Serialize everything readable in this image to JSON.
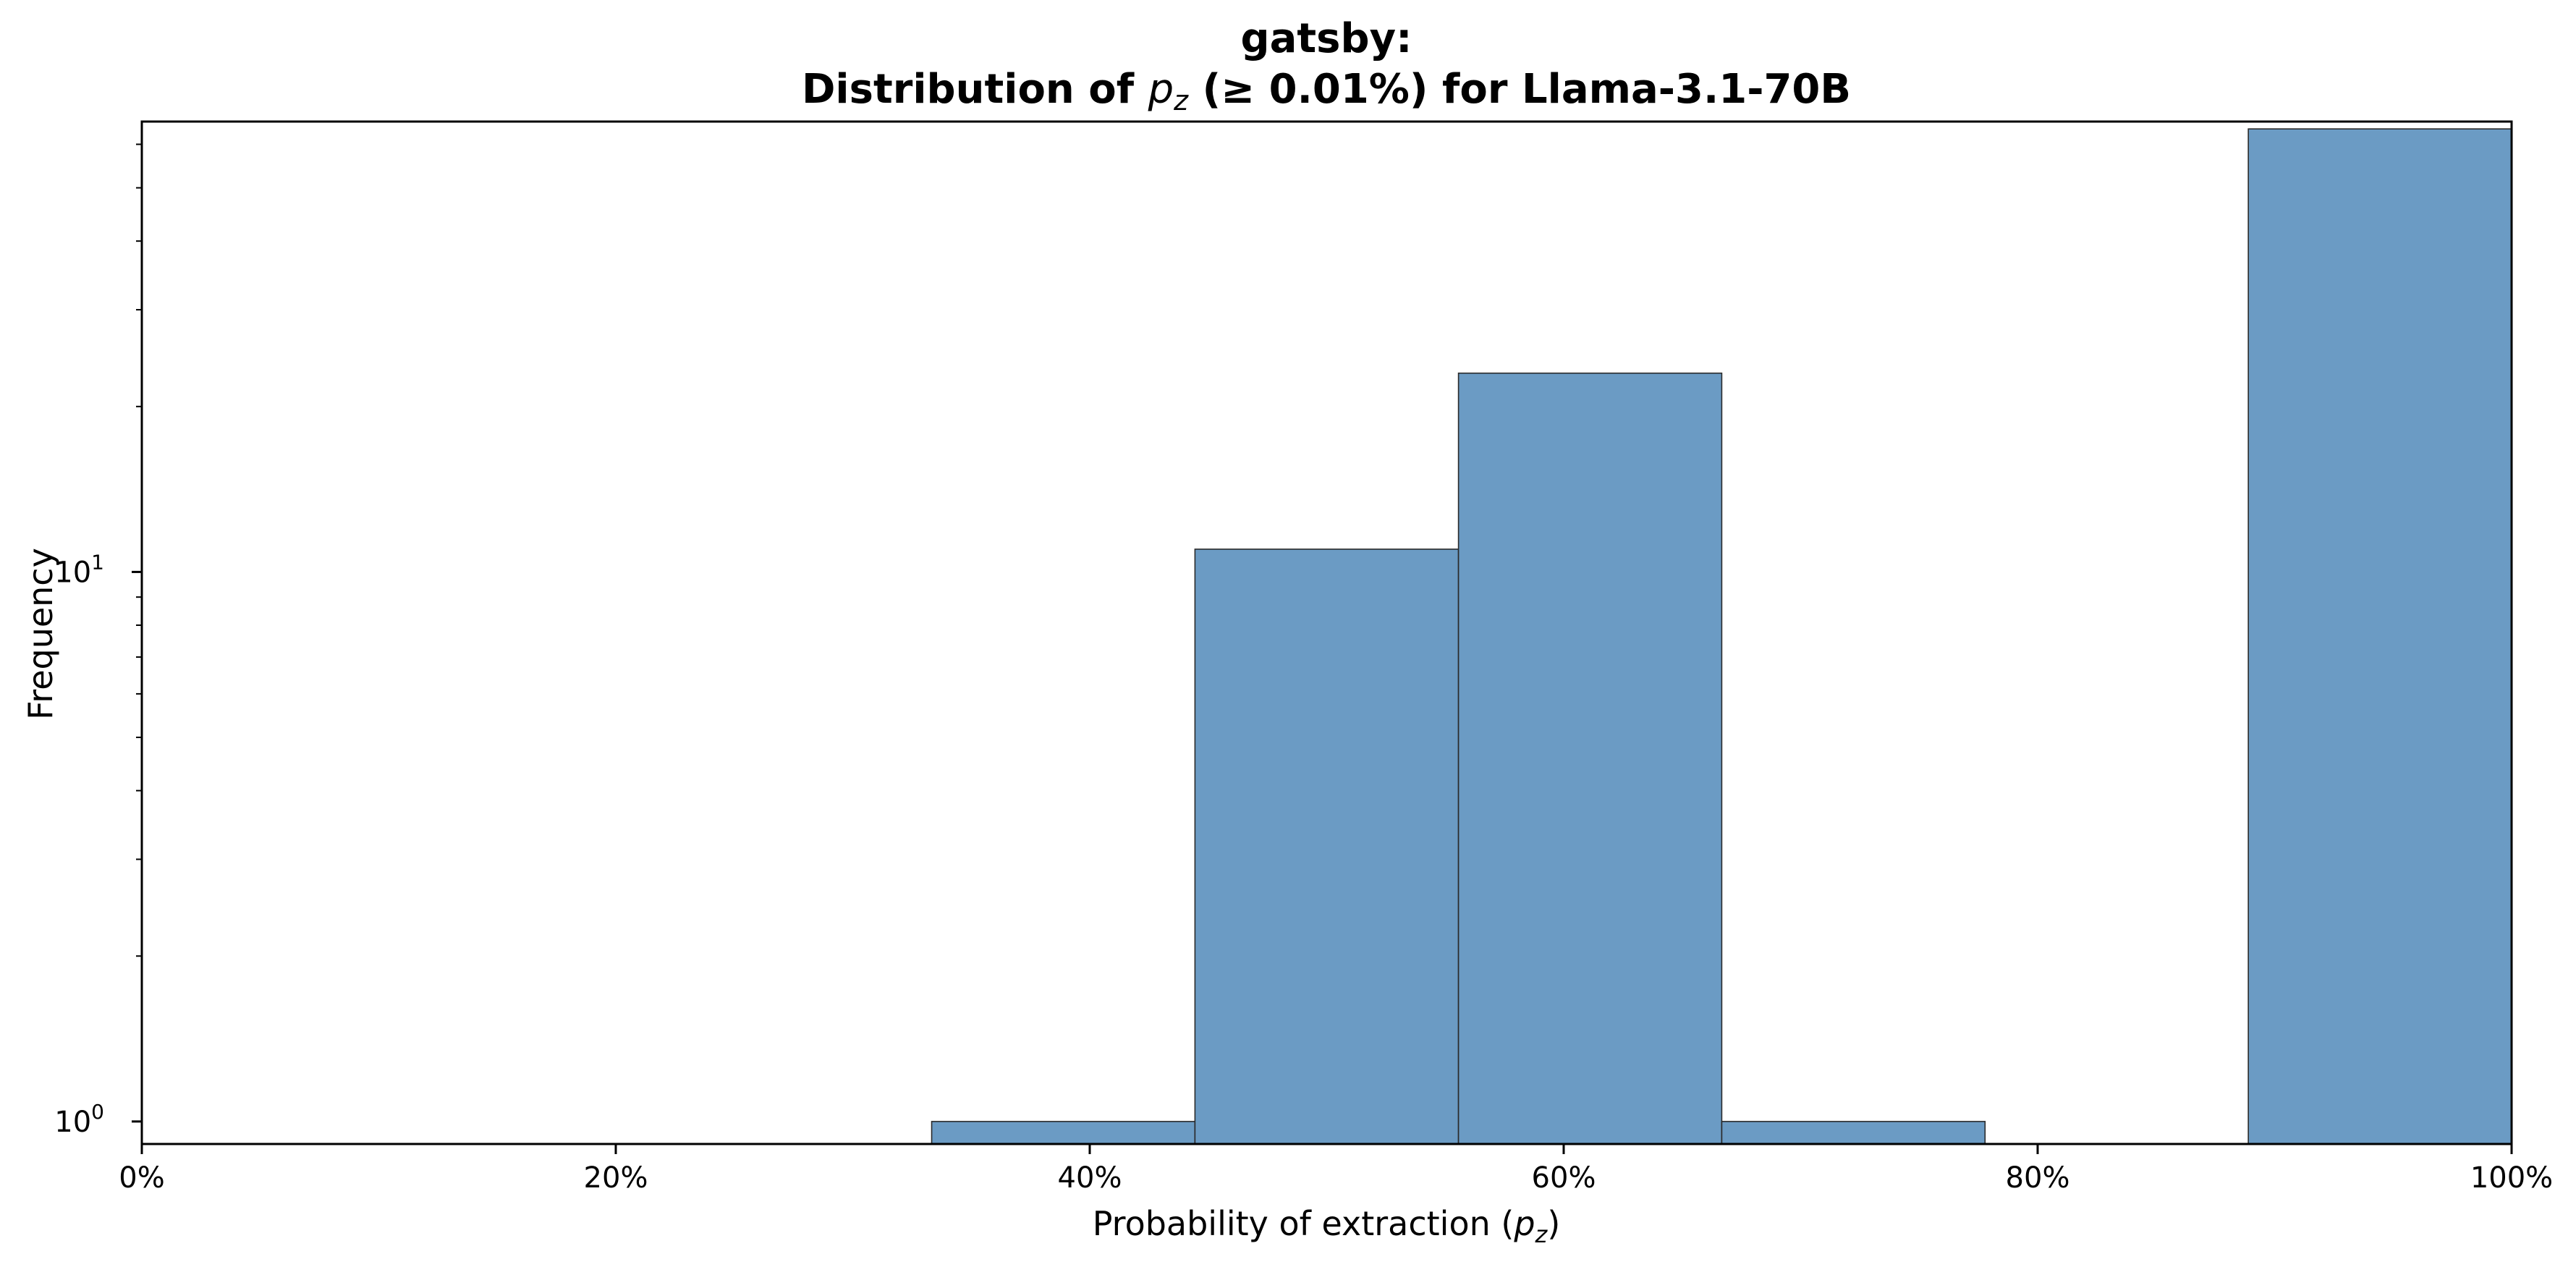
{
  "chart_data": {
    "type": "bar",
    "subtype": "histogram",
    "title_line1": "gatsby:",
    "title_line2_pre": "Distribution of ",
    "title_line2_sym": "p",
    "title_line2_sub": "z",
    "title_line2_post": " (≥ 0.01%) for Llama-3.1-70B",
    "xlabel_pre": "Probability of extraction (",
    "xlabel_sym": "p",
    "xlabel_sub": "z",
    "xlabel_post": ")",
    "ylabel": "Frequency",
    "xlim": [
      0,
      100
    ],
    "ylim": [
      0.91,
      66
    ],
    "yscale": "log",
    "xticks": [
      0,
      20,
      40,
      60,
      80,
      100
    ],
    "xtick_labels": [
      "0%",
      "20%",
      "40%",
      "60%",
      "80%",
      "100%"
    ],
    "ytick_major": [
      1,
      10
    ],
    "ytick_labels": [
      {
        "base": "10",
        "exp": "0"
      },
      {
        "base": "10",
        "exp": "1"
      }
    ],
    "bins": [
      {
        "start": 33.33,
        "end": 44.44,
        "count": 1
      },
      {
        "start": 44.44,
        "end": 55.56,
        "count": 11
      },
      {
        "start": 55.56,
        "end": 66.67,
        "count": 23
      },
      {
        "start": 66.67,
        "end": 77.78,
        "count": 1
      },
      {
        "start": 88.89,
        "end": 100.0,
        "count": 64
      }
    ],
    "bar_color": "#6b9bc4",
    "grid": false,
    "legend": "none"
  }
}
